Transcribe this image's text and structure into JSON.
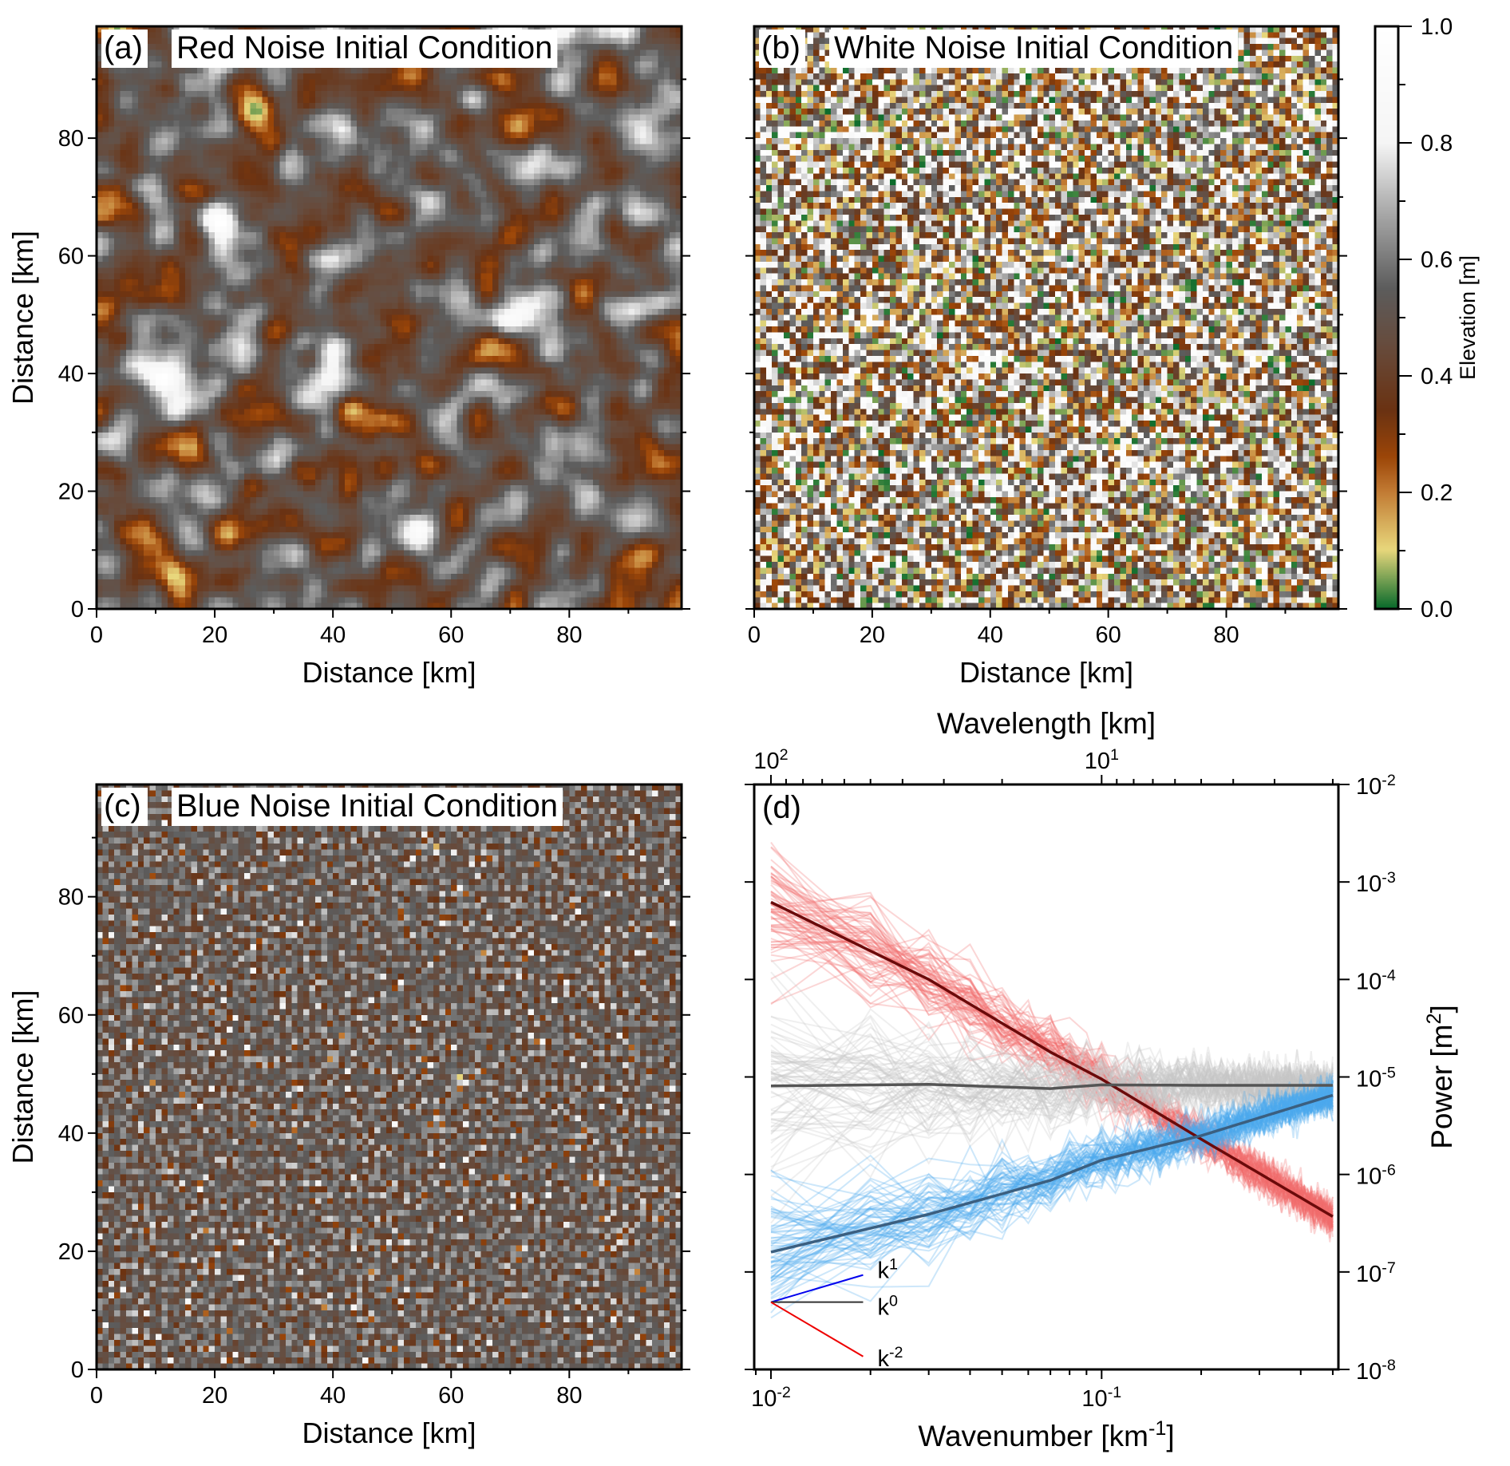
{
  "colormap": {
    "name": "elevation",
    "stops": [
      {
        "v": 0.0,
        "c": "#0a6b2c"
      },
      {
        "v": 0.1,
        "c": "#e8d77c"
      },
      {
        "v": 0.2,
        "c": "#c27b34"
      },
      {
        "v": 0.26,
        "c": "#9c4608"
      },
      {
        "v": 0.34,
        "c": "#6a3212"
      },
      {
        "v": 0.45,
        "c": "#674b3c"
      },
      {
        "v": 0.55,
        "c": "#5c5c5c"
      },
      {
        "v": 0.7,
        "c": "#b4b4b4"
      },
      {
        "v": 0.8,
        "c": "#f5f5f5"
      },
      {
        "v": 1.0,
        "c": "#ffffff"
      }
    ]
  },
  "colorbar": {
    "label": "Elevation [m]",
    "range": [
      0.0,
      1.0
    ],
    "tick_labels": [
      "0.0",
      "0.2",
      "0.4",
      "0.6",
      "0.8",
      "1.0"
    ],
    "tick_values": [
      0,
      0.2,
      0.4,
      0.6,
      0.8,
      1.0
    ]
  },
  "maps": [
    {
      "id": "a",
      "letter": "(a)",
      "title": "Red Noise Initial Condition",
      "noise": "red",
      "xlabel": "Distance [km]",
      "ylabel": "Distance [km]",
      "show_y_labels": true
    },
    {
      "id": "b",
      "letter": "(b)",
      "title": "White Noise Initial Condition",
      "noise": "white",
      "xlabel": "Distance [km]",
      "ylabel": "",
      "show_y_labels": false
    },
    {
      "id": "c",
      "letter": "(c)",
      "title": "Blue Noise Initial Condition",
      "noise": "blue",
      "xlabel": "Distance [km]",
      "ylabel": "Distance [km]",
      "show_y_labels": true
    }
  ],
  "map_axes": {
    "xlim": [
      0,
      99
    ],
    "ylim": [
      0,
      99
    ],
    "tick_values": [
      0,
      20,
      40,
      60,
      80
    ],
    "tick_labels": [
      "0",
      "20",
      "40",
      "60",
      "80"
    ]
  },
  "chart_data": {
    "type": "line",
    "letter": "(d)",
    "xscale": "log",
    "yscale": "log",
    "xlim": [
      0.0089,
      0.52
    ],
    "ylim": [
      1e-08,
      0.01
    ],
    "xlabel": {
      "text": "Wavenumber [km",
      "sup": "-1",
      "after": "]"
    },
    "ylabel": {
      "text": "Power [m",
      "sup": "2",
      "after": "]"
    },
    "top_xlabel": "Wavelength [km]",
    "x_ticks": [
      {
        "v": 0.01,
        "base": "10",
        "exp": "-2"
      },
      {
        "v": 0.1,
        "base": "10",
        "exp": "-1"
      }
    ],
    "top_ticks": [
      {
        "wavelength": 100,
        "base": "10",
        "exp": "2"
      },
      {
        "wavelength": 10,
        "base": "10",
        "exp": "1"
      }
    ],
    "y_ticks": [
      {
        "v": 0.01,
        "base": "10",
        "exp": "-2"
      },
      {
        "v": 0.001,
        "base": "10",
        "exp": "-3"
      },
      {
        "v": 0.0001,
        "base": "10",
        "exp": "-4"
      },
      {
        "v": 1e-05,
        "base": "10",
        "exp": "-5"
      },
      {
        "v": 1e-06,
        "base": "10",
        "exp": "-6"
      },
      {
        "v": 1e-07,
        "base": "10",
        "exp": "-7"
      },
      {
        "v": 1e-08,
        "base": "10",
        "exp": "-8"
      }
    ],
    "series": [
      {
        "key": "red",
        "ensemble_color": "#f26b6b",
        "mean_color": "#6b0a0a",
        "mean": {
          "x": [
            0.01,
            0.03,
            0.07,
            0.1,
            0.2,
            0.5
          ],
          "y": [
            0.00062,
            0.0001,
            1.8e-05,
            9.5e-06,
            2.3e-06,
            3.7e-07
          ]
        }
      },
      {
        "key": "white",
        "ensemble_color": "#c4c4c4",
        "mean_color": "#555555",
        "mean": {
          "x": [
            0.01,
            0.03,
            0.07,
            0.1,
            0.2,
            0.5
          ],
          "y": [
            8.1e-06,
            8.4e-06,
            7.6e-06,
            8.3e-06,
            8.2e-06,
            8.2e-06
          ]
        }
      },
      {
        "key": "blue",
        "ensemble_color": "#4aa8ee",
        "mean_color": "#3b5f80",
        "mean": {
          "x": [
            0.01,
            0.03,
            0.07,
            0.1,
            0.2,
            0.5
          ],
          "y": [
            1.6e-07,
            3.9e-07,
            8.7e-07,
            1.4e-06,
            2.5e-06,
            6.5e-06
          ]
        }
      }
    ],
    "reference_slopes": [
      {
        "label": "k",
        "exp": "1",
        "slope": 1,
        "color": "#0000ee"
      },
      {
        "label": "k",
        "exp": "0",
        "slope": 0,
        "color": "#333333"
      },
      {
        "label": "k",
        "exp": "-2",
        "slope": -2,
        "color": "#ee0000"
      }
    ],
    "reference_origin": {
      "x": 0.01,
      "y": 4.9e-08
    },
    "reference_end_x": 0.019
  }
}
